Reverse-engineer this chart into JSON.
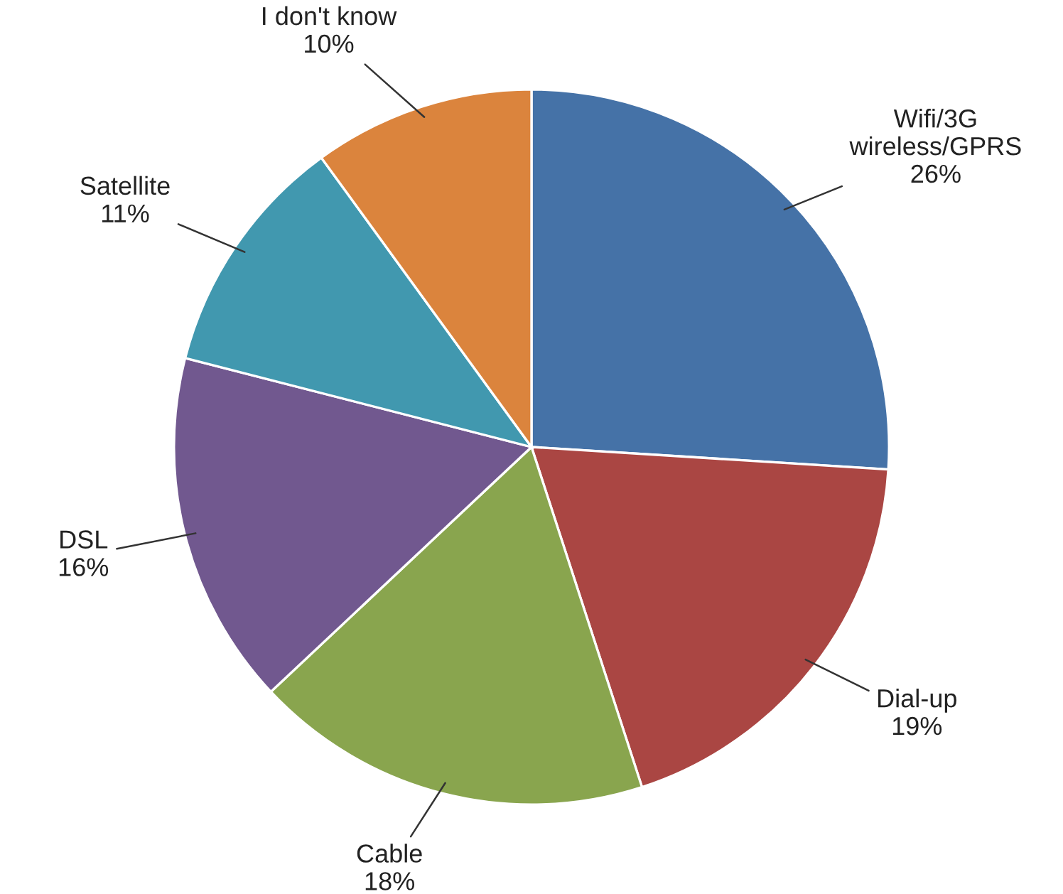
{
  "chart_data": {
    "type": "pie",
    "categories": [
      "Wifi/3G\nwireless/GPRS",
      "Dial-up",
      "Cable",
      "DSL",
      "Satellite",
      "I don't know"
    ],
    "values": [
      26,
      19,
      18,
      16,
      11,
      10
    ],
    "value_labels": [
      "26%",
      "19%",
      "18%",
      "16%",
      "11%",
      "10%"
    ],
    "colors": [
      "#4572a7",
      "#aa4643",
      "#89a54e",
      "#71588f",
      "#4198af",
      "#db843d"
    ],
    "legend": false
  }
}
